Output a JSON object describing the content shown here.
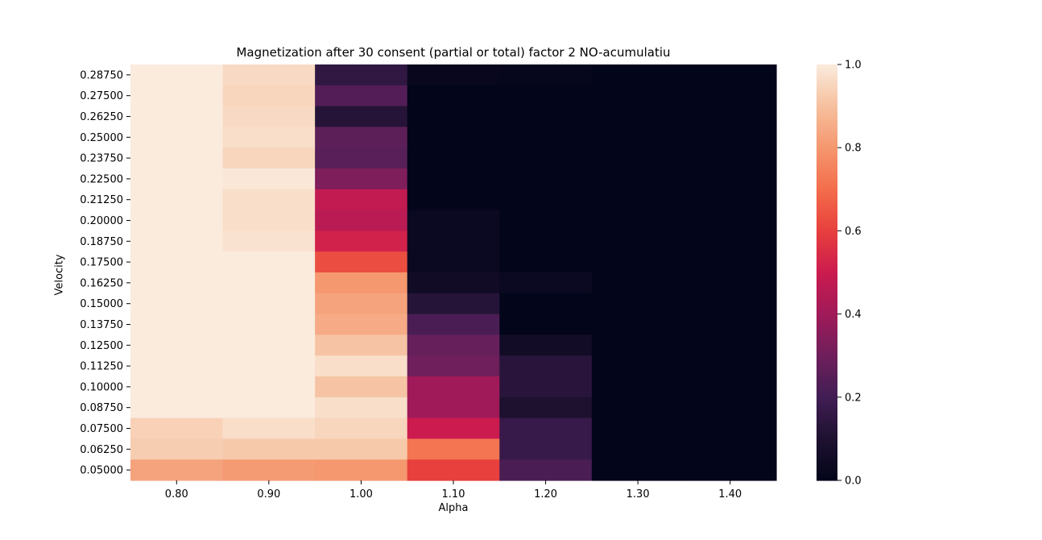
{
  "chart_data": {
    "type": "heatmap",
    "title": "Magnetization after 30 consent (partial or total) factor 2 NO-acumulatiu",
    "xlabel": "Alpha",
    "ylabel": "Velocity",
    "x_categories": [
      "0.80",
      "0.90",
      "1.00",
      "1.10",
      "1.20",
      "1.30",
      "1.40"
    ],
    "y_categories": [
      "0.28750",
      "0.27500",
      "0.26250",
      "0.25000",
      "0.23750",
      "0.22500",
      "0.21250",
      "0.20000",
      "0.18750",
      "0.17500",
      "0.16250",
      "0.15000",
      "0.13750",
      "0.12500",
      "0.11250",
      "0.10000",
      "0.08750",
      "0.07500",
      "0.06250",
      "0.05000"
    ],
    "values": [
      [
        1.0,
        0.96,
        0.15,
        0.02,
        0.01,
        0.0,
        0.0
      ],
      [
        1.0,
        0.95,
        0.24,
        0.0,
        0.0,
        0.0,
        0.0
      ],
      [
        1.0,
        0.96,
        0.12,
        0.0,
        0.0,
        0.0,
        0.0
      ],
      [
        1.0,
        0.97,
        0.26,
        0.0,
        0.0,
        0.0,
        0.0
      ],
      [
        1.0,
        0.95,
        0.25,
        0.0,
        0.0,
        0.0,
        0.0
      ],
      [
        1.0,
        0.99,
        0.33,
        0.0,
        0.0,
        0.0,
        0.0
      ],
      [
        1.0,
        0.97,
        0.48,
        0.0,
        0.0,
        0.0,
        0.0
      ],
      [
        1.0,
        0.97,
        0.46,
        0.03,
        0.0,
        0.0,
        0.0
      ],
      [
        1.0,
        0.98,
        0.52,
        0.03,
        0.0,
        0.0,
        0.0
      ],
      [
        1.0,
        1.0,
        0.63,
        0.03,
        0.0,
        0.0,
        0.0
      ],
      [
        1.0,
        1.0,
        0.8,
        0.05,
        0.03,
        0.0,
        0.0
      ],
      [
        1.0,
        1.0,
        0.83,
        0.12,
        0.0,
        0.0,
        0.0
      ],
      [
        1.0,
        1.0,
        0.85,
        0.22,
        0.0,
        0.0,
        0.0
      ],
      [
        1.0,
        1.0,
        0.91,
        0.28,
        0.06,
        0.0,
        0.0
      ],
      [
        1.0,
        1.0,
        0.97,
        0.3,
        0.13,
        0.0,
        0.0
      ],
      [
        1.0,
        1.0,
        0.91,
        0.4,
        0.13,
        0.0,
        0.0
      ],
      [
        1.0,
        1.0,
        0.97,
        0.4,
        0.1,
        0.0,
        0.0
      ],
      [
        0.94,
        0.97,
        0.95,
        0.5,
        0.17,
        0.0,
        0.0
      ],
      [
        0.93,
        0.92,
        0.92,
        0.72,
        0.17,
        0.0,
        0.0
      ],
      [
        0.83,
        0.81,
        0.8,
        0.6,
        0.22,
        0.0,
        0.0
      ]
    ],
    "colorbar": {
      "range": [
        0.0,
        1.0
      ],
      "ticks": [
        "0.0",
        "0.2",
        "0.4",
        "0.6",
        "0.8",
        "1.0"
      ],
      "colormap": "rocket"
    },
    "grid": false,
    "legend": "none"
  }
}
